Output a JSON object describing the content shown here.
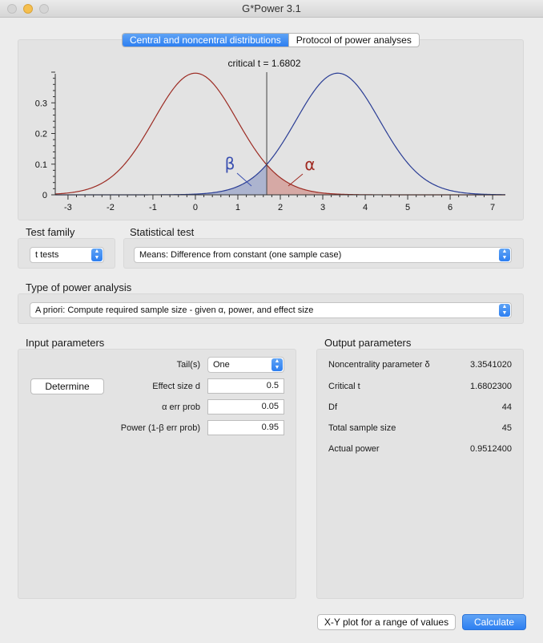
{
  "window": {
    "title": "G*Power 3.1"
  },
  "tabs": {
    "active": "Central and noncentral distributions",
    "other": "Protocol of power analyses"
  },
  "plot": {
    "critical_label": "critical t = 1.6802",
    "beta_symbol": "β",
    "alpha_symbol": "α",
    "colors": {
      "central": "#9c2b23",
      "noncentral": "#2a3d95",
      "beta_fill": "#9aa4c8",
      "alpha_fill": "#d29a95"
    }
  },
  "chart_data": {
    "type": "line",
    "title": "",
    "xlabel": "",
    "ylabel": "",
    "xlim": [
      -3.3,
      7.3
    ],
    "ylim": [
      0,
      0.4
    ],
    "x_ticks": [
      "-3",
      "-2",
      "-1",
      "0",
      "1",
      "2",
      "3",
      "4",
      "5",
      "6",
      "7"
    ],
    "y_ticks": [
      "0",
      "0.1",
      "0.2",
      "0.3"
    ],
    "series": [
      {
        "name": "",
        "type": "t-density",
        "df": 44,
        "noncentrality": 0
      },
      {
        "name": "",
        "type": "noncentral-t-density",
        "df": 44,
        "noncentrality": 3.354102
      }
    ],
    "critical_t": 1.6802
  },
  "test_family": {
    "label": "Test family",
    "value": "t tests"
  },
  "statistical_test": {
    "label": "Statistical test",
    "value": "Means: Difference from constant (one sample case)"
  },
  "power_analysis": {
    "label": "Type of power analysis",
    "value": "A priori: Compute required sample size - given α, power, and effect size"
  },
  "input": {
    "header": "Input parameters",
    "determine": "Determine",
    "tails": {
      "label": "Tail(s)",
      "value": "One"
    },
    "effect_size": {
      "label": "Effect size d",
      "value": "0.5"
    },
    "alpha": {
      "label": "α err prob",
      "value": "0.05"
    },
    "power": {
      "label": "Power (1-β err prob)",
      "value": "0.95"
    }
  },
  "output": {
    "header": "Output parameters",
    "rows": [
      {
        "label": "Noncentrality parameter δ",
        "value": "3.3541020"
      },
      {
        "label": "Critical t",
        "value": "1.6802300"
      },
      {
        "label": "Df",
        "value": "44"
      },
      {
        "label": "Total sample size",
        "value": "45"
      },
      {
        "label": "Actual power",
        "value": "0.9512400"
      }
    ]
  },
  "buttons": {
    "xy_plot": "X-Y plot for a range of values",
    "calculate": "Calculate"
  }
}
